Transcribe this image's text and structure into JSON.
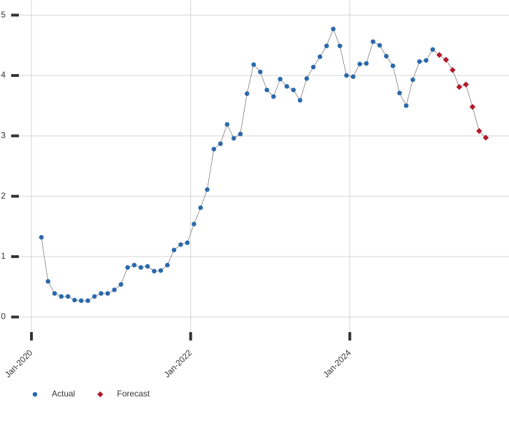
{
  "chart_data": {
    "type": "line",
    "x": [
      "2020-02",
      "2020-03",
      "2020-04",
      "2020-05",
      "2020-06",
      "2020-07",
      "2020-08",
      "2020-09",
      "2020-10",
      "2020-11",
      "2020-12",
      "2021-01",
      "2021-02",
      "2021-03",
      "2021-04",
      "2021-05",
      "2021-06",
      "2021-07",
      "2021-08",
      "2021-09",
      "2021-10",
      "2021-11",
      "2021-12",
      "2022-01",
      "2022-02",
      "2022-03",
      "2022-04",
      "2022-05",
      "2022-06",
      "2022-07",
      "2022-08",
      "2022-09",
      "2022-10",
      "2022-11",
      "2022-12",
      "2023-01",
      "2023-02",
      "2023-03",
      "2023-04",
      "2023-05",
      "2023-06",
      "2023-07",
      "2023-08",
      "2023-09",
      "2023-10",
      "2023-11",
      "2023-12",
      "2024-01",
      "2024-02",
      "2024-03",
      "2024-04",
      "2024-05",
      "2024-06",
      "2024-07",
      "2024-08",
      "2024-09",
      "2024-10",
      "2024-11",
      "2024-12",
      "2025-01",
      "2025-02",
      "2025-03",
      "2025-04",
      "2025-05",
      "2025-06",
      "2025-07",
      "2025-08",
      "2025-09"
    ],
    "series": [
      {
        "name": "Actual",
        "color": "#2a69ac",
        "marker": "circle",
        "values": [
          1.32,
          0.59,
          0.39,
          0.34,
          0.34,
          0.28,
          0.27,
          0.27,
          0.34,
          0.39,
          0.39,
          0.45,
          0.54,
          0.82,
          0.86,
          0.82,
          0.84,
          0.76,
          0.77,
          0.86,
          1.11,
          1.2,
          1.23,
          1.54,
          1.81,
          2.11,
          2.78,
          2.87,
          3.19,
          2.96,
          3.03,
          3.7,
          4.18,
          4.06,
          3.76,
          3.65,
          3.94,
          3.82,
          3.76,
          3.59,
          3.95,
          4.14,
          4.31,
          4.49,
          4.77,
          4.49,
          4.0,
          3.98,
          4.19,
          4.2,
          4.56,
          4.5,
          4.32,
          4.16,
          3.71,
          3.5,
          3.93,
          4.23,
          4.25,
          4.43,
          null,
          null,
          null,
          null,
          null,
          null,
          null,
          null
        ]
      },
      {
        "name": "Forecast",
        "color": "#b2182b",
        "marker": "diamond",
        "values": [
          null,
          null,
          null,
          null,
          null,
          null,
          null,
          null,
          null,
          null,
          null,
          null,
          null,
          null,
          null,
          null,
          null,
          null,
          null,
          null,
          null,
          null,
          null,
          null,
          null,
          null,
          null,
          null,
          null,
          null,
          null,
          null,
          null,
          null,
          null,
          null,
          null,
          null,
          null,
          null,
          null,
          null,
          null,
          null,
          null,
          null,
          null,
          null,
          null,
          null,
          null,
          null,
          null,
          null,
          null,
          null,
          null,
          null,
          null,
          null,
          4.34,
          4.26,
          4.09,
          3.81,
          3.85,
          3.48,
          3.08,
          2.97
        ]
      }
    ],
    "line_color": "#555555",
    "xlim": [
      "2019-11",
      "2026-01"
    ],
    "xticks": [
      {
        "value": "2020-01",
        "label": "Jan-2020"
      },
      {
        "value": "2022-01",
        "label": "Jan-2022"
      },
      {
        "value": "2024-01",
        "label": "Jan-2024"
      }
    ],
    "ylim": [
      -0.25,
      5.25
    ],
    "yticks": [
      0,
      1,
      2,
      3,
      4,
      5
    ],
    "grid": true,
    "legend": "bottom-left"
  }
}
